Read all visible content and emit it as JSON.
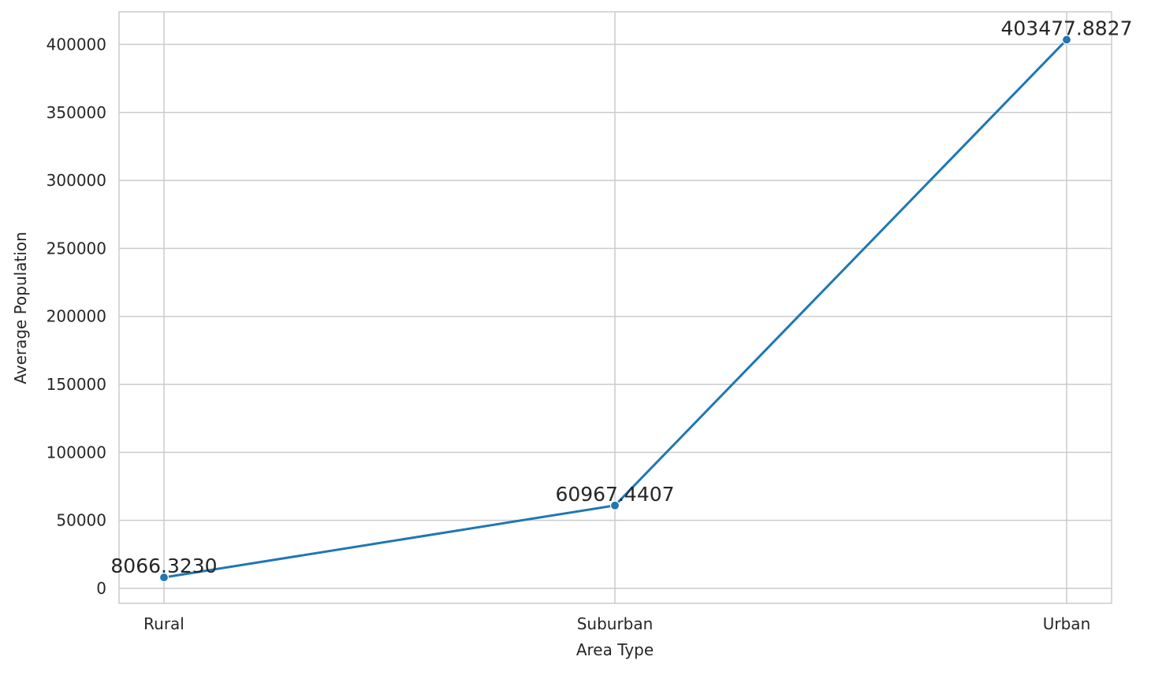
{
  "chart_data": {
    "type": "line",
    "title": "",
    "xlabel": "Area Type",
    "ylabel": "Average Population",
    "categories": [
      "Rural",
      "Suburban",
      "Urban"
    ],
    "series": [
      {
        "values": [
          8066.323,
          60967.4407,
          403477.8827
        ],
        "labels": [
          "8066.3230",
          "60967.4407",
          "403477.8827"
        ],
        "color": "#1f77b4",
        "marker": "circle"
      }
    ],
    "yticks": [
      0,
      50000,
      100000,
      150000,
      200000,
      250000,
      300000,
      350000,
      400000
    ],
    "ylim": [
      -11000,
      424000
    ],
    "grid": true,
    "legend": "none"
  }
}
